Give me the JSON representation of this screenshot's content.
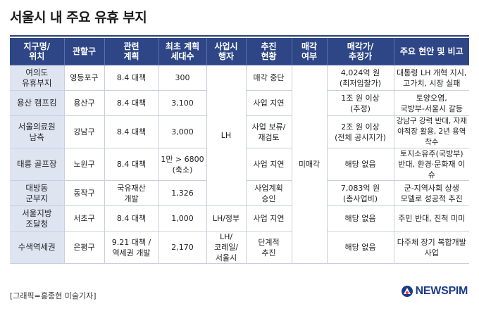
{
  "title": "서울시 내 주요 유휴 부지",
  "headers": [
    "지구명/\n위치",
    "관할구",
    "관련\n계획",
    "최초 계획\n세대수",
    "사업시\n행자",
    "추진\n현황",
    "매각\n여부",
    "매각가/\n추정가",
    "주요 현안 및 비고"
  ],
  "rows": [
    {
      "location": "여의도\n유휴부지",
      "district": "영등포구",
      "plan": "8.4 대책",
      "households": "300",
      "status": "매각 중단",
      "price": "4,024억 원\n(최저입찰가)",
      "issues": "대통령 LH 개혁 지시,\n고가치, 시장 실패"
    },
    {
      "location": "용산 캠프킴",
      "district": "용산구",
      "plan": "8.4 대책",
      "households": "3,100",
      "status": "사업 지연",
      "price": "1조 원 이상\n(추정)",
      "issues": "토양오염,\n국방부-서울시 갈등"
    },
    {
      "location": "서울의료원\n남측",
      "district": "강남구",
      "plan": "8.4 대책",
      "households": "3,000",
      "status": "사업 보류/\n재검토",
      "price": "2조 원 이상\n(전체 공시지가)",
      "issues": "강남구 강력 반대, 자재\n야적장 활용, 2년 용역 착수"
    },
    {
      "location": "태릉 골프장",
      "district": "노원구",
      "plan": "8.4 대책",
      "households": "1만 > 6800\n(축소)",
      "status": "사업 지연",
      "price": "해당 없음",
      "issues": "토지소유주(국방부)\n반대, 환경·문화재 이슈"
    },
    {
      "location": "대방동\n군부지",
      "district": "동작구",
      "plan": "국유재산\n개발",
      "households": "1,326",
      "status": "사업계획\n승인",
      "price": "7,083억 원\n(총사업비)",
      "issues": "군-지역사회 상생\n모델로 성공적 추진"
    },
    {
      "location": "서울지방\n조달청",
      "district": "서초구",
      "plan": "8.4 대책",
      "households": "1,000",
      "operator": "LH/정부",
      "status": "사업 지연",
      "price": "해당 없음",
      "issues": "주민 반대, 진척 미미"
    },
    {
      "location": "수색역세권",
      "district": "은평구",
      "plan": "9.21 대책 /\n역세권 개발",
      "households": "2,170",
      "operator": "LH/\n코레일/\n서울시",
      "status": "단계적\n추진",
      "price": "해당 없음",
      "issues": "다주체 장기 복합개발\n사업"
    }
  ],
  "merged": {
    "operator_lh": "LH",
    "sale_status": "미매각"
  },
  "footer": {
    "credit": "[그래픽=홍종현 미술기자]",
    "logo_text": "NEWSPIM"
  },
  "colors": {
    "header_bg": "#2e4686",
    "location_bg": "#dfe4f1",
    "brand": "#1b3a8a"
  }
}
